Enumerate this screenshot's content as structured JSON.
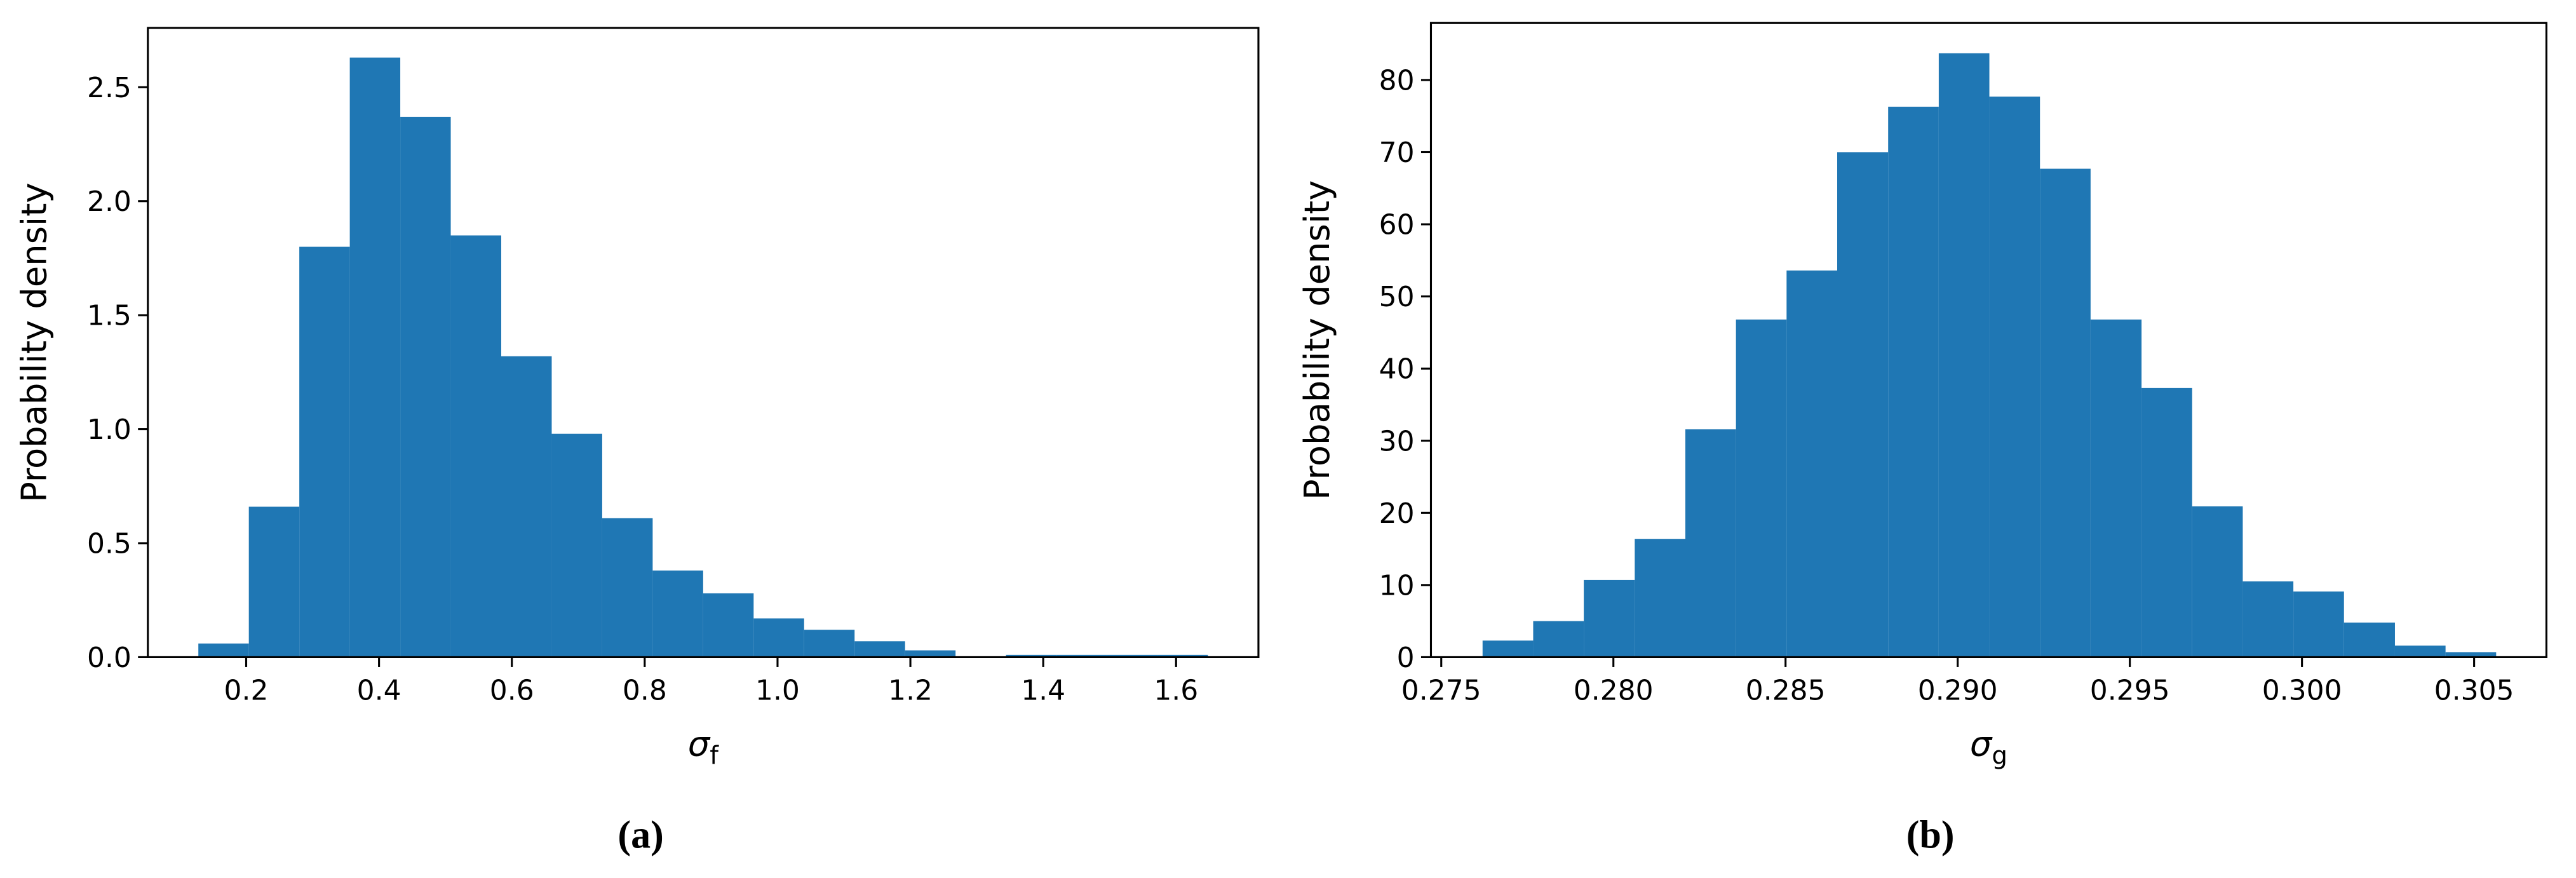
{
  "chart_data": [
    {
      "type": "histogram",
      "color": "#1f77b4",
      "bins": [
        0.128,
        0.204,
        0.28,
        0.356,
        0.432,
        0.508,
        0.584,
        0.66,
        0.736,
        0.812,
        0.888,
        0.964,
        1.04,
        1.116,
        1.192,
        1.268,
        1.344,
        1.42,
        1.496,
        1.572,
        1.648
      ],
      "values": [
        0.06,
        0.66,
        1.8,
        2.63,
        2.37,
        1.85,
        1.32,
        0.98,
        0.61,
        0.38,
        0.28,
        0.17,
        0.12,
        0.07,
        0.03,
        0.0,
        0.01,
        0.01,
        0.01,
        0.01
      ],
      "xlim": [
        0.052,
        1.724
      ],
      "ylim": [
        0,
        2.76
      ],
      "xticks": [
        0.2,
        0.4,
        0.6,
        0.8,
        {
          "value": 1.0,
          "label": "1.0"
        },
        1.2,
        1.4,
        1.6
      ],
      "yticks": [
        {
          "value": 0,
          "label": "0.0"
        },
        0.5,
        {
          "value": 1,
          "label": "1.0"
        },
        1.5,
        {
          "value": 2,
          "label": "2.0"
        },
        2.5
      ],
      "ylabel": "Probability density",
      "xlabel": {
        "symbol": "σ",
        "subscript": "f"
      },
      "caption": "(a)"
    },
    {
      "type": "histogram",
      "color": "#1f77b4",
      "bins": [
        0.2762,
        0.27767,
        0.27914,
        0.28062,
        0.28209,
        0.28356,
        0.28503,
        0.2865,
        0.28798,
        0.28945,
        0.29092,
        0.29239,
        0.29386,
        0.29534,
        0.29681,
        0.29828,
        0.29975,
        0.30122,
        0.3027,
        0.30417,
        0.30564
      ],
      "values": [
        2.3,
        5.0,
        10.7,
        16.4,
        31.6,
        46.8,
        53.6,
        70.0,
        76.3,
        83.7,
        77.7,
        67.7,
        46.8,
        37.3,
        20.9,
        10.5,
        9.1,
        4.8,
        1.6,
        0.7
      ],
      "xlim": [
        0.2747,
        0.3071
      ],
      "ylim": [
        0,
        87.9
      ],
      "xticks": [
        0.275,
        {
          "value": 0.28,
          "label": "0.280"
        },
        0.285,
        {
          "value": 0.29,
          "label": "0.290"
        },
        0.295,
        {
          "value": 0.3,
          "label": "0.300"
        },
        0.305
      ],
      "yticks": [
        0,
        10,
        20,
        30,
        40,
        50,
        60,
        70,
        80
      ],
      "ylabel": "Probability density",
      "xlabel": {
        "symbol": "σ",
        "subscript": "g"
      },
      "caption": "(b)"
    }
  ]
}
